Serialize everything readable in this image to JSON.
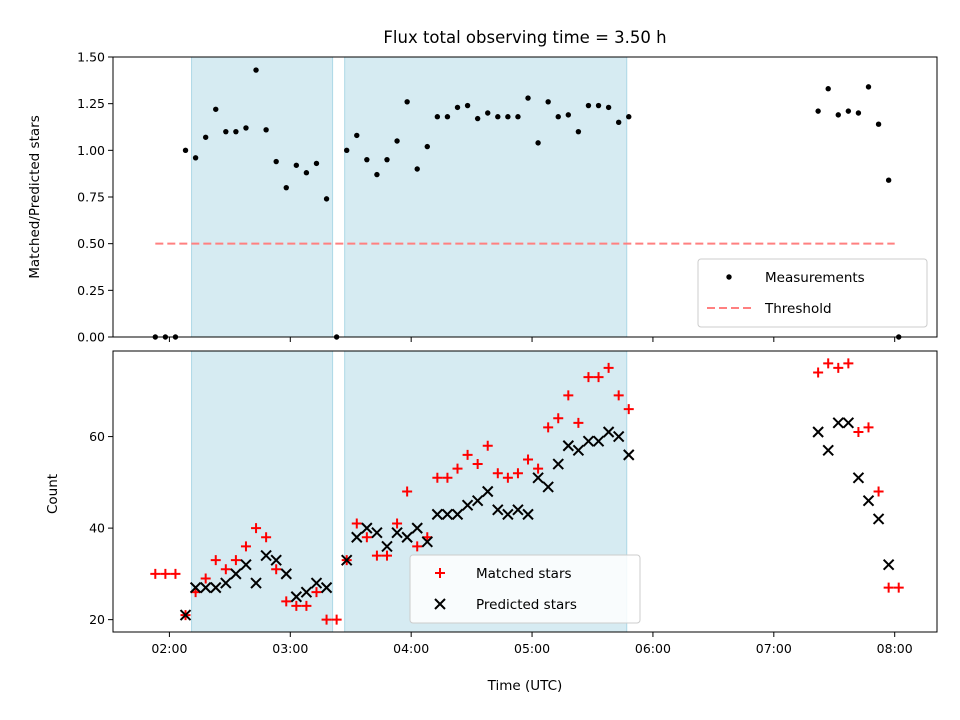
{
  "chart_data": [
    {
      "type": "scatter",
      "title": "Flux total observing time = 3.50 h",
      "ylabel": "Matched/Predicted stars",
      "xlabel": "",
      "xlim": [
        "01:32",
        "08:21"
      ],
      "ylim": [
        0,
        1.5
      ],
      "yticks": [
        "0.00",
        "0.25",
        "0.50",
        "0.75",
        "1.00",
        "1.25",
        "1.50"
      ],
      "shaded_intervals": [
        [
          "02:11",
          "03:21"
        ],
        [
          "03:27",
          "05:47"
        ]
      ],
      "legend": {
        "placement": "bottom-right",
        "entries": [
          "Measurements",
          "Threshold"
        ]
      },
      "series": [
        {
          "name": "Measurements",
          "color": "#000000",
          "marker": "dot",
          "points": [
            [
              "01:53",
              0.0
            ],
            [
              "01:58",
              0.0
            ],
            [
              "02:03",
              0.0
            ],
            [
              "02:08",
              1.0
            ],
            [
              "02:13",
              0.96
            ],
            [
              "02:18",
              1.07
            ],
            [
              "02:23",
              1.22
            ],
            [
              "02:28",
              1.1
            ],
            [
              "02:33",
              1.1
            ],
            [
              "02:38",
              1.12
            ],
            [
              "02:43",
              1.43
            ],
            [
              "02:48",
              1.11
            ],
            [
              "02:53",
              0.94
            ],
            [
              "02:58",
              0.8
            ],
            [
              "03:03",
              0.92
            ],
            [
              "03:08",
              0.88
            ],
            [
              "03:13",
              0.93
            ],
            [
              "03:18",
              0.74
            ],
            [
              "03:23",
              0.0
            ],
            [
              "03:28",
              1.0
            ],
            [
              "03:33",
              1.08
            ],
            [
              "03:38",
              0.95
            ],
            [
              "03:43",
              0.87
            ],
            [
              "03:48",
              0.95
            ],
            [
              "03:53",
              1.05
            ],
            [
              "03:58",
              1.26
            ],
            [
              "04:03",
              0.9
            ],
            [
              "04:08",
              1.02
            ],
            [
              "04:13",
              1.18
            ],
            [
              "04:18",
              1.18
            ],
            [
              "04:23",
              1.23
            ],
            [
              "04:28",
              1.24
            ],
            [
              "04:33",
              1.17
            ],
            [
              "04:38",
              1.2
            ],
            [
              "04:43",
              1.18
            ],
            [
              "04:48",
              1.18
            ],
            [
              "04:53",
              1.18
            ],
            [
              "04:58",
              1.28
            ],
            [
              "05:03",
              1.04
            ],
            [
              "05:08",
              1.26
            ],
            [
              "05:13",
              1.18
            ],
            [
              "05:18",
              1.19
            ],
            [
              "05:23",
              1.1
            ],
            [
              "05:28",
              1.24
            ],
            [
              "05:33",
              1.24
            ],
            [
              "05:38",
              1.23
            ],
            [
              "05:43",
              1.15
            ],
            [
              "05:48",
              1.18
            ],
            [
              "07:22",
              1.21
            ],
            [
              "07:27",
              1.33
            ],
            [
              "07:32",
              1.19
            ],
            [
              "07:37",
              1.21
            ],
            [
              "07:42",
              1.2
            ],
            [
              "07:47",
              1.34
            ],
            [
              "07:52",
              1.14
            ],
            [
              "07:57",
              0.84
            ],
            [
              "08:02",
              0.0
            ]
          ]
        },
        {
          "name": "Threshold",
          "color": "#ff8080",
          "style": "dashed",
          "points": [
            [
              "01:53",
              0.5
            ],
            [
              "08:00",
              0.5
            ]
          ]
        }
      ]
    },
    {
      "type": "scatter",
      "title": "",
      "ylabel": "Count",
      "xlabel": "Time (UTC)",
      "xlim": [
        "01:32",
        "08:21"
      ],
      "ylim": [
        17.3,
        78.7
      ],
      "yticks": [
        "20",
        "40",
        "60"
      ],
      "xticks": [
        "02:00",
        "03:00",
        "04:00",
        "05:00",
        "06:00",
        "07:00",
        "08:00"
      ],
      "shaded_intervals": [
        [
          "02:11",
          "03:21"
        ],
        [
          "03:27",
          "05:47"
        ]
      ],
      "legend": {
        "placement": "bottom-center",
        "entries": [
          "Matched stars",
          "Predicted stars"
        ]
      },
      "series": [
        {
          "name": "Matched stars",
          "color": "#ff0000",
          "marker": "plus",
          "points": [
            [
              "01:53",
              30
            ],
            [
              "01:58",
              30
            ],
            [
              "02:03",
              30
            ],
            [
              "02:08",
              21
            ],
            [
              "02:13",
              26
            ],
            [
              "02:18",
              29
            ],
            [
              "02:23",
              33
            ],
            [
              "02:28",
              31
            ],
            [
              "02:33",
              33
            ],
            [
              "02:38",
              36
            ],
            [
              "02:43",
              40
            ],
            [
              "02:48",
              38
            ],
            [
              "02:53",
              31
            ],
            [
              "02:58",
              24
            ],
            [
              "03:03",
              23
            ],
            [
              "03:08",
              23
            ],
            [
              "03:13",
              26
            ],
            [
              "03:18",
              20
            ],
            [
              "03:23",
              20
            ],
            [
              "03:28",
              33
            ],
            [
              "03:33",
              41
            ],
            [
              "03:38",
              38
            ],
            [
              "03:43",
              34
            ],
            [
              "03:48",
              34
            ],
            [
              "03:53",
              41
            ],
            [
              "03:58",
              48
            ],
            [
              "04:03",
              36
            ],
            [
              "04:08",
              38
            ],
            [
              "04:13",
              51
            ],
            [
              "04:18",
              51
            ],
            [
              "04:23",
              53
            ],
            [
              "04:28",
              56
            ],
            [
              "04:33",
              54
            ],
            [
              "04:38",
              58
            ],
            [
              "04:43",
              52
            ],
            [
              "04:48",
              51
            ],
            [
              "04:53",
              52
            ],
            [
              "04:58",
              55
            ],
            [
              "05:03",
              53
            ],
            [
              "05:08",
              62
            ],
            [
              "05:13",
              64
            ],
            [
              "05:18",
              69
            ],
            [
              "05:23",
              63
            ],
            [
              "05:28",
              73
            ],
            [
              "05:33",
              73
            ],
            [
              "05:38",
              75
            ],
            [
              "05:43",
              69
            ],
            [
              "05:48",
              66
            ],
            [
              "07:22",
              74
            ],
            [
              "07:27",
              76
            ],
            [
              "07:32",
              75
            ],
            [
              "07:37",
              76
            ],
            [
              "07:42",
              61
            ],
            [
              "07:47",
              62
            ],
            [
              "07:52",
              48
            ],
            [
              "07:57",
              27
            ],
            [
              "08:02",
              27
            ]
          ]
        },
        {
          "name": "Predicted stars",
          "color": "#000000",
          "marker": "x",
          "points": [
            [
              "02:08",
              21
            ],
            [
              "02:13",
              27
            ],
            [
              "02:18",
              27
            ],
            [
              "02:23",
              27
            ],
            [
              "02:28",
              28
            ],
            [
              "02:33",
              30
            ],
            [
              "02:38",
              32
            ],
            [
              "02:43",
              28
            ],
            [
              "02:48",
              34
            ],
            [
              "02:53",
              33
            ],
            [
              "02:58",
              30
            ],
            [
              "03:03",
              25
            ],
            [
              "03:08",
              26
            ],
            [
              "03:13",
              28
            ],
            [
              "03:18",
              27
            ],
            [
              "03:28",
              33
            ],
            [
              "03:33",
              38
            ],
            [
              "03:38",
              40
            ],
            [
              "03:43",
              39
            ],
            [
              "03:48",
              36
            ],
            [
              "03:53",
              39
            ],
            [
              "03:58",
              38
            ],
            [
              "04:03",
              40
            ],
            [
              "04:08",
              37
            ],
            [
              "04:13",
              43
            ],
            [
              "04:18",
              43
            ],
            [
              "04:23",
              43
            ],
            [
              "04:28",
              45
            ],
            [
              "04:33",
              46
            ],
            [
              "04:38",
              48
            ],
            [
              "04:43",
              44
            ],
            [
              "04:48",
              43
            ],
            [
              "04:53",
              44
            ],
            [
              "04:58",
              43
            ],
            [
              "05:03",
              51
            ],
            [
              "05:08",
              49
            ],
            [
              "05:13",
              54
            ],
            [
              "05:18",
              58
            ],
            [
              "05:23",
              57
            ],
            [
              "05:28",
              59
            ],
            [
              "05:33",
              59
            ],
            [
              "05:38",
              61
            ],
            [
              "05:43",
              60
            ],
            [
              "05:48",
              56
            ],
            [
              "07:22",
              61
            ],
            [
              "07:27",
              57
            ],
            [
              "07:32",
              63
            ],
            [
              "07:37",
              63
            ],
            [
              "07:42",
              51
            ],
            [
              "07:47",
              46
            ],
            [
              "07:52",
              42
            ],
            [
              "07:57",
              32
            ]
          ]
        }
      ]
    }
  ],
  "colors": {
    "shade": "#add8e6",
    "axes": "#000000"
  }
}
